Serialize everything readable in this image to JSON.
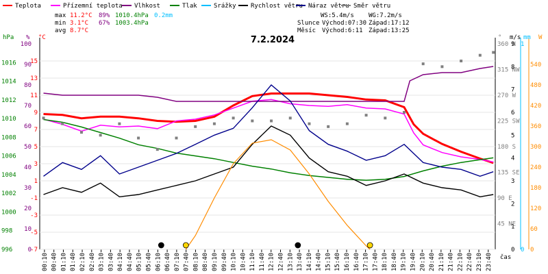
{
  "legend": [
    {
      "label": "Teplota",
      "color": "#ff0000"
    },
    {
      "label": "Přízemní teplota",
      "color": "#ff00ff"
    },
    {
      "label": "Vlhkost",
      "color": "#800080"
    },
    {
      "label": "Tlak",
      "color": "#008000"
    },
    {
      "label": "Srážky",
      "color": "#00bfff"
    },
    {
      "label": "Rychlost větru",
      "color": "#000000"
    },
    {
      "label": "Náraz větru",
      "color": "#00008b"
    },
    {
      "label": "Směr větru",
      "color": "#808080"
    }
  ],
  "stats": {
    "max": {
      "label": "max",
      "temp": "11.2°C",
      "hum": "89%",
      "press": "1010.4hPa",
      "rain": "0.2mm"
    },
    "min": {
      "label": "min",
      "temp": "3.1°C",
      "hum": "67%",
      "press": "1003.4hPa"
    },
    "avg": {
      "label": "avg",
      "temp": "8.7°C"
    }
  },
  "info": {
    "ws": "WS:5.4m/s",
    "wg": "WG:7.2m/s",
    "sun_label": "Slunce",
    "sun_rise": "Východ:07:30",
    "sun_set": "Západ:17:12",
    "moon_label": "Měsíc",
    "moon_rise": "Východ:6:11",
    "moon_set": "Západ:13:25"
  },
  "axis_titles": {
    "hpa": "hPa",
    "pct": "%",
    "degc": "°C",
    "deg": "°",
    "ms": "m/s",
    "mm": "mm",
    "w": "W",
    "time": "čas"
  },
  "chart_data": {
    "type": "line",
    "title": "7.2.2024",
    "xlabel": "čas",
    "x_ticks": [
      "00:10",
      "00:40",
      "01:10",
      "01:40",
      "02:10",
      "02:40",
      "03:10",
      "03:40",
      "04:10",
      "04:40",
      "05:10",
      "05:40",
      "06:10",
      "06:40",
      "07:10",
      "07:40",
      "08:10",
      "08:40",
      "09:10",
      "09:40",
      "10:10",
      "10:40",
      "11:10",
      "11:40",
      "12:10",
      "12:40",
      "13:10",
      "13:40",
      "14:10",
      "14:40",
      "15:10",
      "15:40",
      "16:10",
      "16:40",
      "17:10",
      "17:40",
      "18:10",
      "18:40",
      "19:10",
      "19:40",
      "20:10",
      "20:40",
      "21:10",
      "21:40",
      "22:10",
      "22:40",
      "23:10",
      "23:40"
    ],
    "axes": {
      "pressure_hpa": {
        "range": [
          996,
          1018
        ],
        "ticks": [
          "996",
          "998",
          "1000",
          "1002",
          "1004",
          "1006",
          "1008",
          "1010",
          "1012",
          "1014",
          "1016"
        ]
      },
      "humidity_pct": {
        "range": [
          0,
          100
        ],
        "ticks": [
          "0",
          "10",
          "20",
          "30",
          "40",
          "50",
          "60",
          "70",
          "80",
          "90",
          "100"
        ]
      },
      "temperature_c": {
        "range": [
          -7,
          17
        ],
        "ticks": [
          "-7",
          "-5",
          "-3",
          "-1",
          "1",
          "3",
          "5",
          "7",
          "9",
          "11",
          "13",
          "15"
        ]
      },
      "wind_dir_deg": {
        "range": [
          0,
          360
        ],
        "ticks": [
          "45 NE",
          "90 E",
          "135 SE",
          "180 S",
          "225 SW",
          "270 W",
          "315 NW",
          "360 N"
        ]
      },
      "wind_ms": {
        "range": [
          0,
          9
        ],
        "ticks": [
          "0",
          "1",
          "2",
          "3",
          "4",
          "5",
          "6",
          "7",
          "8",
          "9"
        ]
      },
      "rain_mm": {
        "range": [
          0,
          1
        ],
        "ticks": [
          "0",
          "1"
        ]
      },
      "solar_w": {
        "range": [
          0,
          600
        ],
        "ticks": [
          "0",
          "60",
          "120",
          "180",
          "240",
          "300",
          "360",
          "420",
          "480",
          "540"
        ]
      }
    },
    "series": [
      {
        "name": "Teplota",
        "unit": "°C",
        "color": "#ff0000",
        "x": [
          0,
          1,
          2,
          3,
          4,
          5,
          6,
          7,
          8,
          9,
          10,
          11,
          12,
          13,
          14,
          15,
          16,
          17,
          18,
          19,
          19.5,
          20,
          21,
          22,
          23,
          23.7
        ],
        "y": [
          8.8,
          8.7,
          8.3,
          8.5,
          8.5,
          8.3,
          8.0,
          7.9,
          8.0,
          8.5,
          9.8,
          10.9,
          11.2,
          11.2,
          11.2,
          11.0,
          10.8,
          10.5,
          10.4,
          9.6,
          7.6,
          6.5,
          5.3,
          4.4,
          3.6,
          3.1
        ]
      },
      {
        "name": "Přízemní teplota",
        "unit": "°C",
        "color": "#ff00ff",
        "x": [
          0,
          1,
          2,
          3,
          4,
          5,
          6,
          7,
          8,
          9,
          10,
          11,
          12,
          13,
          14,
          15,
          16,
          17,
          18,
          19,
          19.5,
          20,
          21,
          22,
          23,
          23.7
        ],
        "y": [
          8.2,
          7.6,
          6.8,
          7.5,
          7.3,
          7.4,
          7.1,
          8.0,
          8.2,
          8.7,
          9.5,
          10.3,
          10.5,
          10.0,
          9.8,
          9.7,
          9.9,
          9.5,
          9.4,
          8.8,
          6.6,
          5.2,
          4.3,
          3.8,
          3.5,
          3.2
        ]
      },
      {
        "name": "Vlhkost",
        "unit": "%",
        "color": "#800080",
        "x": [
          0,
          1,
          2,
          3,
          4,
          5,
          6,
          7,
          8,
          9,
          10,
          11,
          12,
          13,
          14,
          15,
          16,
          17,
          18,
          19,
          19.3,
          20,
          21,
          22,
          23,
          23.7
        ],
        "y": [
          76,
          75,
          75,
          75,
          75,
          75,
          74,
          72,
          72,
          72,
          72,
          72,
          72,
          72,
          72,
          72,
          72,
          72,
          72,
          72,
          82,
          85,
          86,
          86,
          88,
          89
        ]
      },
      {
        "name": "Tlak",
        "unit": "hPa",
        "color": "#008000",
        "x": [
          0,
          1,
          2,
          3,
          4,
          5,
          6,
          7,
          8,
          9,
          10,
          11,
          12,
          13,
          14,
          15,
          16,
          17,
          18,
          19,
          20,
          21,
          22,
          23,
          23.7
        ],
        "y": [
          1009.9,
          1009.6,
          1009.1,
          1008.5,
          1007.9,
          1007.2,
          1006.8,
          1006.3,
          1006.0,
          1005.7,
          1005.3,
          1004.9,
          1004.6,
          1004.2,
          1003.9,
          1003.7,
          1003.5,
          1003.4,
          1003.5,
          1003.8,
          1004.4,
          1004.9,
          1005.3,
          1005.6,
          1005.8
        ]
      },
      {
        "name": "Rychlost větru",
        "unit": "m/s",
        "color": "#000000",
        "x": [
          0,
          1,
          2,
          3,
          4,
          5,
          6,
          7,
          8,
          9,
          10,
          11,
          12,
          13,
          14,
          15,
          16,
          17,
          18,
          19,
          20,
          21,
          22,
          23,
          23.7
        ],
        "y": [
          2.4,
          2.7,
          2.5,
          2.9,
          2.3,
          2.4,
          2.6,
          2.8,
          3.0,
          3.3,
          3.6,
          4.6,
          5.4,
          5.0,
          4.0,
          3.4,
          3.2,
          2.8,
          3.0,
          3.3,
          2.9,
          2.7,
          2.6,
          2.3,
          2.4
        ]
      },
      {
        "name": "Náraz větru",
        "unit": "m/s",
        "color": "#00008b",
        "x": [
          0,
          1,
          2,
          3,
          4,
          5,
          6,
          7,
          8,
          9,
          10,
          11,
          12,
          13,
          14,
          15,
          16,
          17,
          18,
          19,
          20,
          21,
          22,
          23,
          23.7
        ],
        "y": [
          3.2,
          3.8,
          3.5,
          4.1,
          3.3,
          3.6,
          3.9,
          4.2,
          4.6,
          5.0,
          5.3,
          6.2,
          7.2,
          6.5,
          5.2,
          4.6,
          4.3,
          3.9,
          4.1,
          4.6,
          3.8,
          3.6,
          3.5,
          3.2,
          3.4
        ]
      },
      {
        "name": "Směr větru",
        "unit": "°",
        "color": "#808080",
        "x": [
          0,
          1,
          2,
          3,
          4,
          5,
          6,
          7,
          8,
          9,
          10,
          11,
          12,
          13,
          14,
          15,
          16,
          17,
          18,
          19,
          20,
          21,
          22,
          23,
          23.7
        ],
        "y": [
          230,
          220,
          205,
          200,
          220,
          195,
          175,
          195,
          215,
          220,
          230,
          225,
          225,
          230,
          220,
          215,
          220,
          235,
          230,
          240,
          325,
          320,
          330,
          340,
          345
        ]
      },
      {
        "name": "Slunce",
        "unit": "W",
        "color": "#ff8c00",
        "x": [
          7.5,
          8,
          9,
          10,
          11,
          12,
          13,
          14,
          15,
          16,
          17,
          17.2
        ],
        "y": [
          0,
          40,
          150,
          250,
          310,
          320,
          290,
          220,
          140,
          70,
          10,
          0
        ]
      }
    ],
    "markers": [
      {
        "label": "moon_rise",
        "time": 6.2
      },
      {
        "label": "sun_rise",
        "time": 7.5
      },
      {
        "label": "moon_set",
        "time": 13.4
      },
      {
        "label": "sun_set",
        "time": 17.2
      }
    ]
  }
}
